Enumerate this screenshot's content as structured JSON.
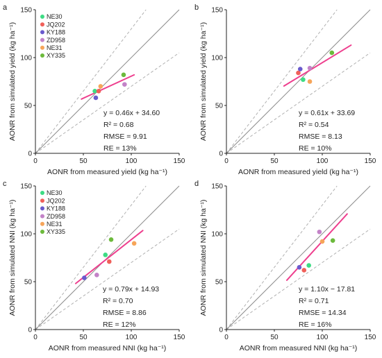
{
  "figure": {
    "panels": [
      {
        "letter": "a",
        "stats": {
          "equation": "y = 0.46x + 34.60",
          "r2": "R² = 0.68",
          "rmse": "RMSE = 9.91",
          "re": "RE = 13%"
        }
      },
      {
        "letter": "b",
        "stats": {
          "equation": "y = 0.61x + 33.69",
          "r2": "R² = 0.54",
          "rmse": "RMSE = 8.13",
          "re": "RE = 10%"
        }
      },
      {
        "letter": "c",
        "stats": {
          "equation": "y = 0.79x + 14.93",
          "r2": "R² = 0.70",
          "rmse": "RMSE = 8.86",
          "re": "RE = 12%"
        }
      },
      {
        "letter": "d",
        "stats": {
          "equation": "y = 1.10x − 17.81",
          "r2": "R² = 0.71",
          "rmse": "RMSE = 14.34",
          "re": "RE = 16%"
        }
      }
    ]
  },
  "chart_data": [
    {
      "type": "scatter",
      "panel": "a",
      "xlabel": "AONR from measured yield (kg ha⁻¹)",
      "ylabel": "AONR from simulated yield (kg ha⁻¹)",
      "xlim": [
        0,
        150
      ],
      "ylim": [
        0,
        150
      ],
      "xticks": [
        "0",
        "50",
        "100",
        "150"
      ],
      "yticks": [
        "0",
        "50",
        "100",
        "150"
      ],
      "legend": {
        "placement": "top-left",
        "entries": [
          "NE30",
          "JQ202",
          "KY188",
          "ZD958",
          "NE31",
          "XY335"
        ]
      },
      "series": [
        {
          "name": "NE30",
          "color": "#3ddc84",
          "points": [
            [
              62,
              65
            ]
          ]
        },
        {
          "name": "JQ202",
          "color": "#f0605a",
          "points": [
            [
              66,
              65
            ]
          ]
        },
        {
          "name": "KY188",
          "color": "#6a5acd",
          "points": [
            [
              63,
              58
            ]
          ]
        },
        {
          "name": "ZD958",
          "color": "#c383c8",
          "points": [
            [
              93,
              72
            ]
          ]
        },
        {
          "name": "NE31",
          "color": "#f6a55a",
          "points": [
            [
              68,
              70
            ]
          ]
        },
        {
          "name": "XY335",
          "color": "#6cba3c",
          "points": [
            [
              92,
              82
            ]
          ]
        }
      ],
      "reference_lines": {
        "one_to_one": true,
        "dashed_bounds": true
      },
      "fit": {
        "slope": 0.46,
        "intercept": 34.6,
        "x_range": [
          48,
          103
        ],
        "color": "#ee3f8e"
      }
    },
    {
      "type": "scatter",
      "panel": "b",
      "xlabel": "AONR from measured yield (kg ha⁻¹)",
      "ylabel": "AONR from simulated yield (kg ha⁻¹)",
      "xlim": [
        0,
        150
      ],
      "ylim": [
        0,
        150
      ],
      "xticks": [
        "0",
        "50",
        "100",
        "150"
      ],
      "yticks": [
        "0",
        "50",
        "100",
        "150"
      ],
      "series": [
        {
          "name": "NE30",
          "color": "#3ddc84",
          "points": [
            [
              80,
              77
            ]
          ]
        },
        {
          "name": "JQ202",
          "color": "#f0605a",
          "points": [
            [
              75,
              84
            ]
          ]
        },
        {
          "name": "KY188",
          "color": "#6a5acd",
          "points": [
            [
              77,
              88
            ]
          ]
        },
        {
          "name": "ZD958",
          "color": "#c383c8",
          "points": [
            [
              87,
              89
            ]
          ]
        },
        {
          "name": "NE31",
          "color": "#f6a55a",
          "points": [
            [
              87,
              75
            ]
          ]
        },
        {
          "name": "XY335",
          "color": "#6cba3c",
          "points": [
            [
              110,
              105
            ]
          ]
        }
      ],
      "reference_lines": {
        "one_to_one": true,
        "dashed_bounds": true
      },
      "fit": {
        "slope": 0.61,
        "intercept": 33.69,
        "x_range": [
          60,
          130
        ],
        "color": "#ee3f8e"
      }
    },
    {
      "type": "scatter",
      "panel": "c",
      "xlabel": "AONR from measured NNI (kg ha⁻¹)",
      "ylabel": "AONR from simulated NNI (kg ha⁻¹)",
      "xlim": [
        0,
        150
      ],
      "ylim": [
        0,
        150
      ],
      "xticks": [
        "0",
        "50",
        "100",
        "150"
      ],
      "yticks": [
        "0",
        "50",
        "100",
        "150"
      ],
      "legend": {
        "placement": "top-left",
        "entries": [
          "NE30",
          "JQ202",
          "KY188",
          "ZD958",
          "NE31",
          "XY335"
        ]
      },
      "series": [
        {
          "name": "NE30",
          "color": "#3ddc84",
          "points": [
            [
              73,
              78
            ]
          ]
        },
        {
          "name": "JQ202",
          "color": "#f0605a",
          "points": [
            [
              77,
              71
            ]
          ]
        },
        {
          "name": "KY188",
          "color": "#6a5acd",
          "points": [
            [
              51,
              54
            ]
          ]
        },
        {
          "name": "ZD958",
          "color": "#c383c8",
          "points": [
            [
              64,
              57
            ]
          ]
        },
        {
          "name": "NE31",
          "color": "#f6a55a",
          "points": [
            [
              103,
              90
            ]
          ]
        },
        {
          "name": "XY335",
          "color": "#6cba3c",
          "points": [
            [
              79,
              94
            ]
          ]
        }
      ],
      "reference_lines": {
        "one_to_one": true,
        "dashed_bounds": true
      },
      "fit": {
        "slope": 0.79,
        "intercept": 14.93,
        "x_range": [
          42,
          112
        ],
        "color": "#ee3f8e"
      }
    },
    {
      "type": "scatter",
      "panel": "d",
      "xlabel": "AONR from measured NNI (kg ha⁻¹)",
      "ylabel": "AONR from simulated NNI (kg ha⁻¹)",
      "xlim": [
        0,
        150
      ],
      "ylim": [
        0,
        150
      ],
      "xticks": [
        "0",
        "50",
        "100",
        "150"
      ],
      "yticks": [
        "0",
        "50",
        "100",
        "150"
      ],
      "series": [
        {
          "name": "NE30",
          "color": "#3ddc84",
          "points": [
            [
              86,
              67
            ]
          ]
        },
        {
          "name": "JQ202",
          "color": "#f0605a",
          "points": [
            [
              81,
              62
            ]
          ]
        },
        {
          "name": "KY188",
          "color": "#6a5acd",
          "points": [
            [
              76,
              65
            ]
          ]
        },
        {
          "name": "ZD958",
          "color": "#c383c8",
          "points": [
            [
              97,
              102
            ]
          ]
        },
        {
          "name": "NE31",
          "color": "#f6a55a",
          "points": [
            [
              100,
              92
            ]
          ]
        },
        {
          "name": "XY335",
          "color": "#6cba3c",
          "points": [
            [
              111,
              93
            ]
          ]
        }
      ],
      "reference_lines": {
        "one_to_one": true,
        "dashed_bounds": true
      },
      "fit": {
        "slope": 1.1,
        "intercept": -17.81,
        "x_range": [
          63,
          126
        ],
        "color": "#ee3f8e"
      }
    }
  ]
}
